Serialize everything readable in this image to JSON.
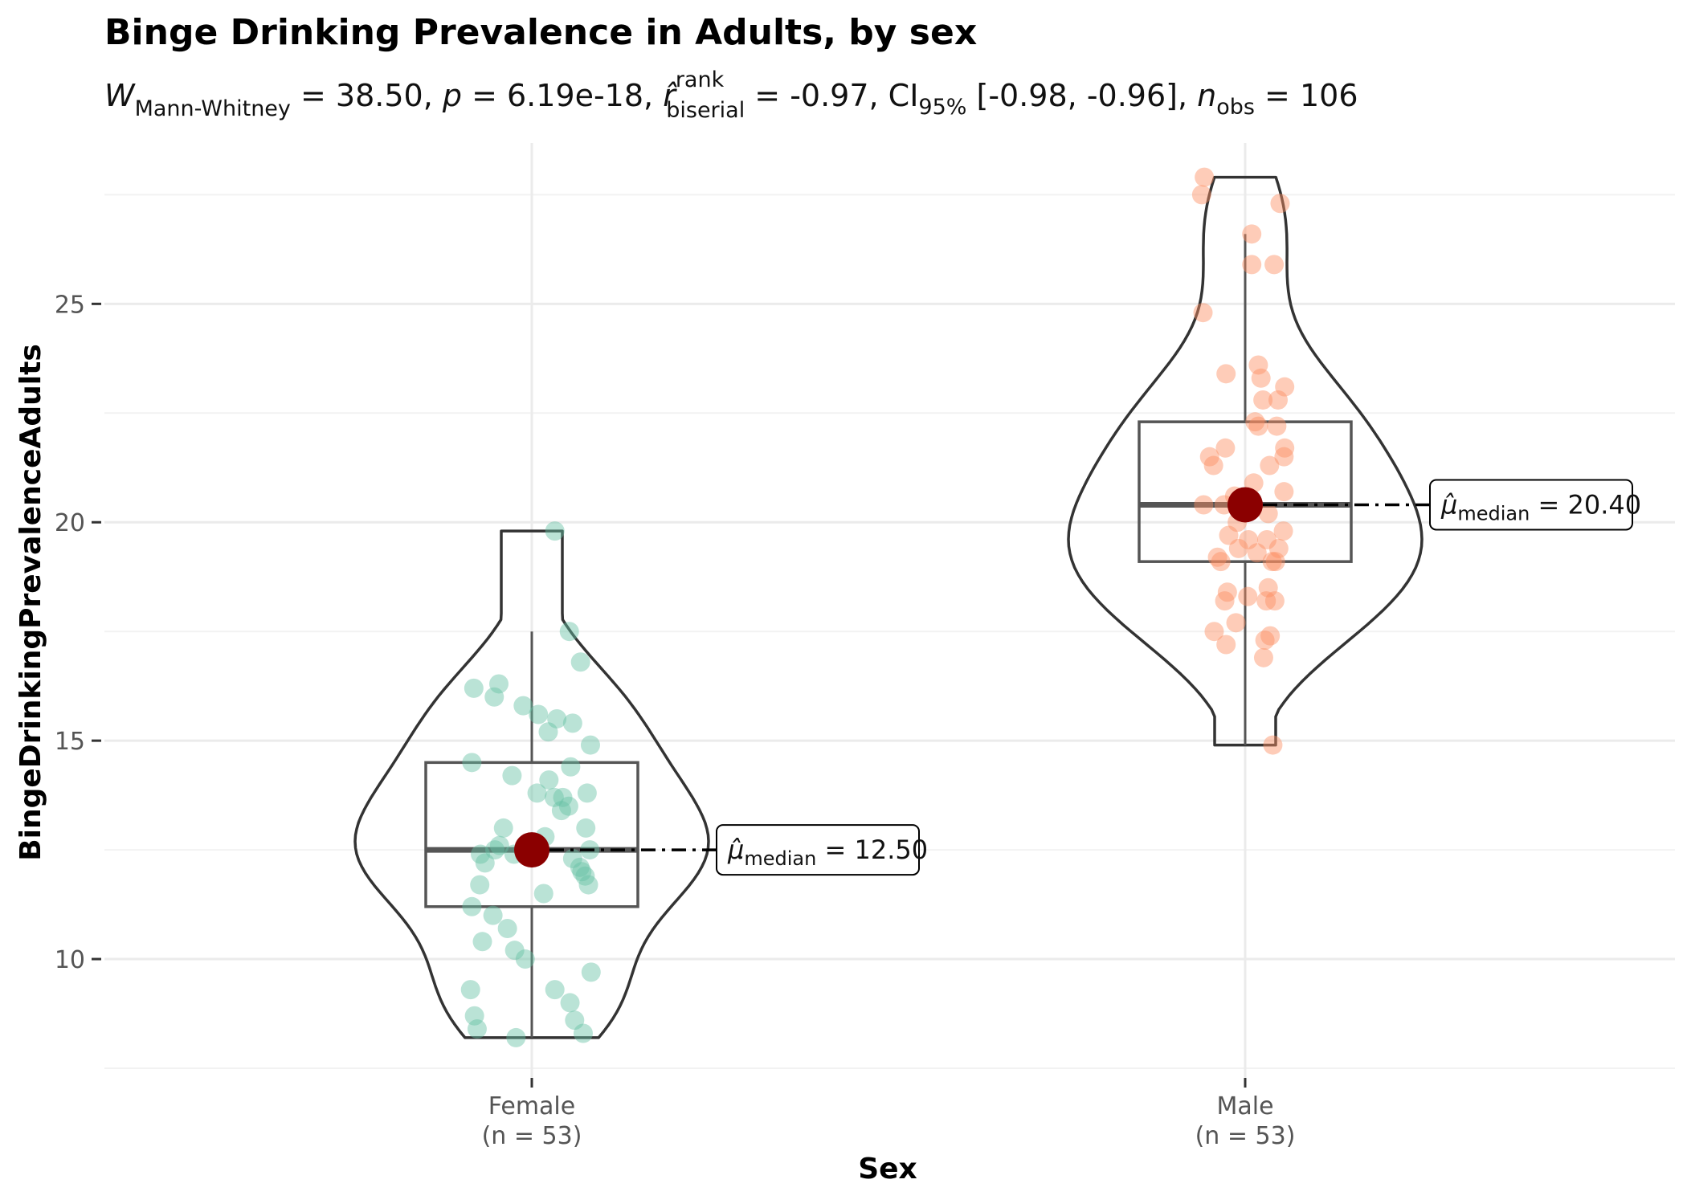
{
  "chart_data": {
    "type": "violin-box-scatter",
    "title": "Binge Drinking Prevalence in Adults, by sex",
    "subtitle": {
      "W_label": "W",
      "W_sub": "Mann-Whitney",
      "W_value": " = 38.50, ",
      "p_label": "p",
      "p_value": " = 6.19e-18, ",
      "r_label": "r̂",
      "r_sup": "rank",
      "r_sub": "biserial",
      "r_value": " = -0.97, CI",
      "ci_sub": "95%",
      "ci_value": " [-0.98, -0.96], ",
      "n_label": "n",
      "n_sub": "obs",
      "n_value": " = 106"
    },
    "xlabel": "Sex",
    "ylabel": "BingeDrinkingPrevalenceAdults",
    "ylim": [
      7.5,
      28.5
    ],
    "yticks": [
      10,
      15,
      20,
      25
    ],
    "grid": true,
    "groups": [
      {
        "name": "Female",
        "n_label": "(n = 53)",
        "color": "#66c2a5",
        "box": {
          "q1": 11.2,
          "median": 12.5,
          "q3": 14.5,
          "whisker_low": 8.2,
          "whisker_high": 17.5
        },
        "violin_range": [
          8.2,
          19.8
        ],
        "median_label": {
          "prefix": "μ̂",
          "sub": "median",
          "value": " = 12.50"
        },
        "points": [
          [
            19.8,
            0.35
          ],
          [
            17.5,
            0.57
          ],
          [
            16.8,
            0.74
          ],
          [
            16.3,
            -0.5
          ],
          [
            16.2,
            -0.88
          ],
          [
            16.0,
            -0.57
          ],
          [
            15.8,
            -0.13
          ],
          [
            15.6,
            0.1
          ],
          [
            15.5,
            0.38
          ],
          [
            15.4,
            0.62
          ],
          [
            15.2,
            0.25
          ],
          [
            14.9,
            0.89
          ],
          [
            14.5,
            -0.91
          ],
          [
            14.4,
            0.59
          ],
          [
            14.1,
            0.26
          ],
          [
            13.8,
            0.08
          ],
          [
            13.8,
            0.84
          ],
          [
            13.7,
            0.34
          ],
          [
            13.7,
            0.47
          ],
          [
            13.4,
            0.45
          ],
          [
            13.0,
            -0.43
          ],
          [
            13.0,
            0.82
          ],
          [
            12.6,
            -0.49
          ],
          [
            12.5,
            -0.56
          ],
          [
            12.5,
            0.88
          ],
          [
            12.4,
            -0.78
          ],
          [
            12.4,
            -0.27
          ],
          [
            12.3,
            0.62
          ],
          [
            12.2,
            -0.71
          ],
          [
            12.1,
            0.73
          ],
          [
            12.0,
            0.76
          ],
          [
            11.9,
            0.81
          ],
          [
            11.7,
            -0.79
          ],
          [
            11.7,
            0.86
          ],
          [
            11.5,
            0.18
          ],
          [
            11.2,
            -0.91
          ],
          [
            11.0,
            -0.59
          ],
          [
            10.7,
            -0.37
          ],
          [
            10.4,
            -0.75
          ],
          [
            10.2,
            -0.26
          ],
          [
            9.7,
            0.9
          ],
          [
            9.3,
            -0.93
          ],
          [
            9.3,
            0.35
          ],
          [
            9.0,
            0.58
          ],
          [
            8.7,
            -0.87
          ],
          [
            8.6,
            0.65
          ],
          [
            8.4,
            -0.83
          ],
          [
            8.3,
            0.78
          ],
          [
            8.2,
            -0.24
          ],
          [
            13.5,
            0.56
          ],
          [
            14.2,
            -0.3
          ],
          [
            12.8,
            0.2
          ],
          [
            10.0,
            -0.1
          ]
        ]
      },
      {
        "name": "Male",
        "n_label": "(n = 53)",
        "color": "#fc8d62",
        "box": {
          "q1": 19.1,
          "median": 20.4,
          "q3": 22.3,
          "whisker_low": 14.9,
          "whisker_high": 26.6
        },
        "violin_range": [
          14.9,
          27.9
        ],
        "median_label": {
          "prefix": "μ̂",
          "sub": "median",
          "value": " = 20.40"
        },
        "points": [
          [
            27.9,
            -0.62
          ],
          [
            27.5,
            -0.66
          ],
          [
            27.3,
            0.53
          ],
          [
            26.6,
            0.1
          ],
          [
            25.9,
            0.1
          ],
          [
            25.9,
            0.44
          ],
          [
            24.8,
            -0.64
          ],
          [
            23.6,
            0.2
          ],
          [
            23.4,
            -0.29
          ],
          [
            23.3,
            0.24
          ],
          [
            23.1,
            0.6
          ],
          [
            22.8,
            0.27
          ],
          [
            22.8,
            0.5
          ],
          [
            22.3,
            0.15
          ],
          [
            22.2,
            0.2
          ],
          [
            22.2,
            0.48
          ],
          [
            21.7,
            -0.3
          ],
          [
            21.7,
            0.6
          ],
          [
            21.5,
            -0.54
          ],
          [
            21.5,
            0.59
          ],
          [
            21.3,
            -0.48
          ],
          [
            21.3,
            0.37
          ],
          [
            20.9,
            0.13
          ],
          [
            20.7,
            0.59
          ],
          [
            20.6,
            -0.16
          ],
          [
            20.4,
            -0.63
          ],
          [
            20.4,
            -0.32
          ],
          [
            20.2,
            0.35
          ],
          [
            20.0,
            -0.12
          ],
          [
            19.8,
            0.58
          ],
          [
            19.7,
            -0.25
          ],
          [
            19.6,
            0.05
          ],
          [
            19.6,
            0.33
          ],
          [
            19.4,
            -0.1
          ],
          [
            19.4,
            0.51
          ],
          [
            19.3,
            0.18
          ],
          [
            19.2,
            -0.42
          ],
          [
            19.1,
            -0.37
          ],
          [
            19.1,
            0.41
          ],
          [
            19.1,
            0.46
          ],
          [
            18.5,
            0.35
          ],
          [
            18.4,
            -0.27
          ],
          [
            18.3,
            0.04
          ],
          [
            18.2,
            -0.31
          ],
          [
            18.2,
            0.32
          ],
          [
            18.2,
            0.45
          ],
          [
            17.7,
            -0.14
          ],
          [
            17.5,
            -0.47
          ],
          [
            17.4,
            0.38
          ],
          [
            17.3,
            0.3
          ],
          [
            17.2,
            -0.29
          ],
          [
            16.9,
            0.28
          ],
          [
            14.9,
            0.42
          ]
        ]
      }
    ],
    "mean_color": "#8b0000"
  }
}
